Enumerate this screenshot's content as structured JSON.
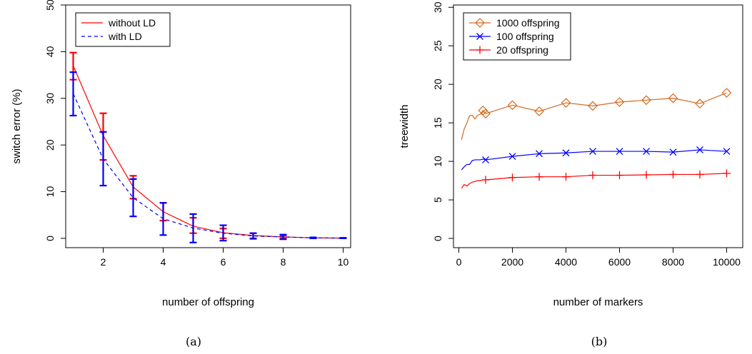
{
  "chart_data": [
    {
      "type": "line",
      "caption": "(a)",
      "xlabel": "number of offspring",
      "ylabel": "switch error (%)",
      "xlim": [
        0.75,
        10.25
      ],
      "ylim": [
        -2,
        50
      ],
      "xticks": [
        2,
        4,
        6,
        8,
        10
      ],
      "yticks": [
        0,
        10,
        20,
        30,
        40,
        50
      ],
      "grid": false,
      "legend": "top-left",
      "series": [
        {
          "name": "without LD",
          "color": "#ff0000",
          "style": "solid",
          "x": [
            1,
            2,
            3,
            4,
            5,
            6,
            7,
            8,
            9,
            10
          ],
          "y": [
            37.0,
            22.0,
            11.0,
            5.7,
            2.6,
            1.2,
            0.6,
            0.3,
            0.1,
            0.05
          ],
          "err_low": [
            34.0,
            16.8,
            8.5,
            3.8,
            1.1,
            0.0,
            0.0,
            0.0,
            0.0,
            0.0
          ],
          "err_high": [
            39.8,
            26.8,
            13.4,
            7.6,
            4.4,
            2.1,
            1.1,
            0.6,
            0.2,
            0.1
          ]
        },
        {
          "name": "with LD",
          "color": "#0000ff",
          "style": "dashed",
          "x": [
            1,
            2,
            3,
            4,
            5,
            6,
            7,
            8,
            9,
            10
          ],
          "y": [
            31.0,
            17.0,
            8.7,
            4.2,
            2.2,
            1.1,
            0.5,
            0.3,
            0.1,
            0.05
          ],
          "err_low": [
            26.3,
            11.3,
            4.7,
            0.7,
            -0.9,
            -0.5,
            -0.1,
            -0.2,
            0.0,
            0.0
          ],
          "err_high": [
            35.6,
            22.8,
            12.7,
            7.6,
            5.2,
            2.8,
            1.1,
            0.8,
            0.2,
            0.1
          ]
        }
      ]
    },
    {
      "type": "line",
      "caption": "(b)",
      "xlabel": "number of markers",
      "ylabel": "treewidth",
      "xlim": [
        -200,
        10600
      ],
      "ylim": [
        -1.2,
        30.3
      ],
      "xticks": [
        0,
        2000,
        4000,
        6000,
        8000,
        10000
      ],
      "yticks": [
        0,
        5,
        10,
        15,
        20,
        25,
        30
      ],
      "grid": false,
      "legend": "top-left",
      "series": [
        {
          "name": "1000 offspring",
          "color": "#d2691e",
          "marker": "diamond",
          "x": [
            100,
            200,
            300,
            400,
            500,
            600,
            700,
            800,
            900,
            1000,
            2000,
            3000,
            4000,
            5000,
            6000,
            7000,
            8000,
            9000,
            10000
          ],
          "y": [
            12.8,
            14.2,
            15.0,
            15.9,
            16.0,
            15.5,
            16.0,
            16.1,
            16.6,
            16.2,
            17.3,
            16.5,
            17.6,
            17.2,
            17.7,
            17.95,
            18.2,
            17.5,
            18.9
          ],
          "marker_at": [
            900,
            1000,
            2000,
            3000,
            4000,
            5000,
            6000,
            7000,
            8000,
            9000,
            10000
          ]
        },
        {
          "name": "100 offspring",
          "color": "#0000ff",
          "marker": "x",
          "x": [
            100,
            200,
            300,
            400,
            500,
            600,
            700,
            800,
            900,
            1000,
            2000,
            3000,
            4000,
            5000,
            6000,
            7000,
            8000,
            9000,
            10000
          ],
          "y": [
            8.9,
            9.3,
            9.6,
            9.6,
            10.1,
            10.2,
            10.2,
            10.2,
            10.3,
            10.2,
            10.65,
            11.0,
            11.1,
            11.3,
            11.3,
            11.3,
            11.2,
            11.5,
            11.3
          ],
          "marker_at": [
            1000,
            2000,
            3000,
            4000,
            5000,
            6000,
            7000,
            8000,
            9000,
            10000
          ]
        },
        {
          "name": "20 offspring",
          "color": "#ff0000",
          "marker": "plus",
          "x": [
            100,
            200,
            300,
            400,
            500,
            600,
            700,
            800,
            900,
            1000,
            2000,
            3000,
            4000,
            5000,
            6000,
            7000,
            8000,
            9000,
            10000
          ],
          "y": [
            6.5,
            7.0,
            6.8,
            7.1,
            7.3,
            7.4,
            7.5,
            7.5,
            7.6,
            7.6,
            7.9,
            8.0,
            8.0,
            8.2,
            8.2,
            8.25,
            8.3,
            8.3,
            8.45
          ],
          "marker_at": [
            1000,
            2000,
            3000,
            4000,
            5000,
            6000,
            7000,
            8000,
            9000,
            10000
          ]
        }
      ]
    }
  ]
}
